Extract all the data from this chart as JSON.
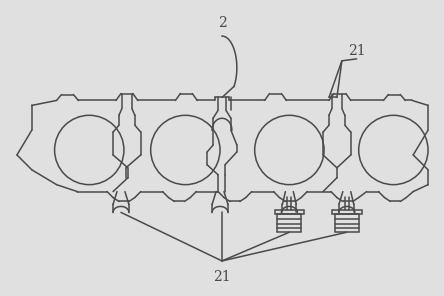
{
  "background_color": "#e0e0e0",
  "line_color": "#4a4a4a",
  "line_width": 1.1,
  "fig_width": 4.44,
  "fig_height": 2.96,
  "dpi": 100,
  "label_2": "2",
  "label_21_top": "21",
  "label_21_bottom": "21"
}
